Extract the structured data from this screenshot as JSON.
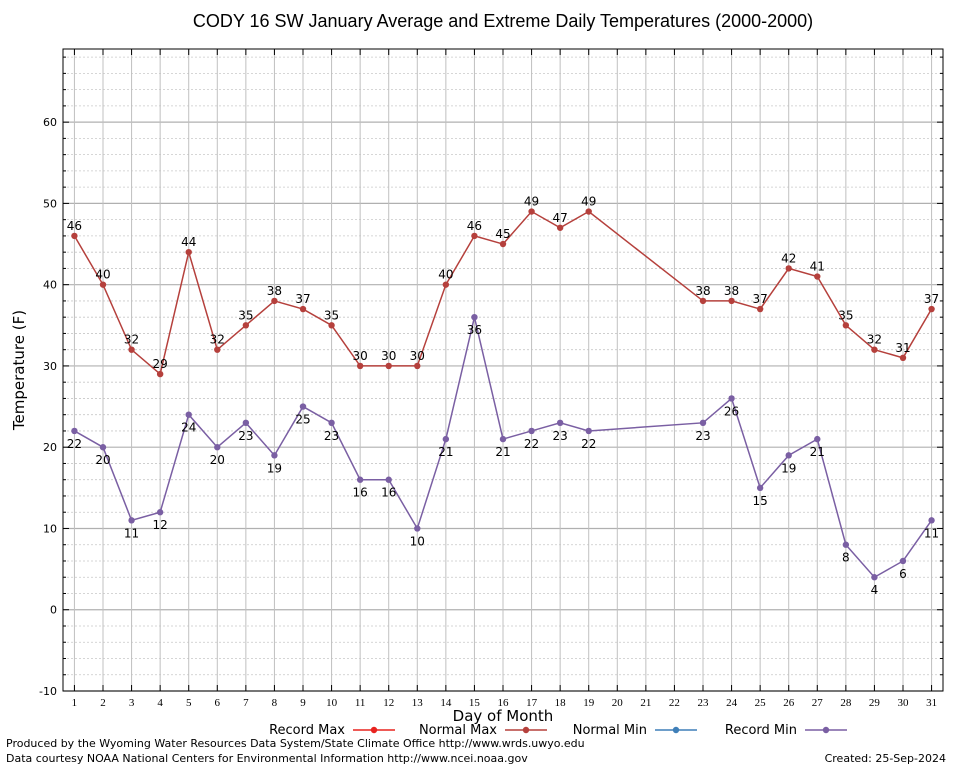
{
  "chart_data": {
    "type": "line",
    "title": "CODY 16 SW January Average and Extreme Daily Temperatures (2000-2000)",
    "xlabel": "Day of Month",
    "ylabel": "Temperature (F)",
    "x": [
      1,
      2,
      3,
      4,
      5,
      6,
      7,
      8,
      9,
      10,
      11,
      12,
      13,
      14,
      15,
      16,
      17,
      18,
      19,
      20,
      21,
      22,
      23,
      24,
      25,
      26,
      27,
      28,
      29,
      30,
      31
    ],
    "xlim": [
      0.6,
      31.4
    ],
    "ylim": [
      -10,
      69
    ],
    "yticks": [
      -10,
      0,
      10,
      20,
      30,
      40,
      50,
      60
    ],
    "grid": true,
    "legend_position": "bottom",
    "series": [
      {
        "name": "Record Max",
        "color": "#e8231f",
        "values": [
          46,
          40,
          32,
          29,
          44,
          32,
          35,
          38,
          37,
          35,
          30,
          30,
          30,
          40,
          46,
          45,
          49,
          47,
          49,
          null,
          null,
          null,
          38,
          38,
          37,
          42,
          41,
          35,
          32,
          31,
          37
        ]
      },
      {
        "name": "Normal Max",
        "color": "#b5403c",
        "values": [
          46,
          40,
          32,
          29,
          44,
          32,
          35,
          38,
          37,
          35,
          30,
          30,
          30,
          40,
          46,
          45,
          49,
          47,
          49,
          null,
          null,
          null,
          38,
          38,
          37,
          42,
          41,
          35,
          32,
          31,
          37
        ]
      },
      {
        "name": "Normal Min",
        "color": "#3f7fb8",
        "values": [
          22,
          20,
          11,
          12,
          24,
          20,
          23,
          19,
          25,
          23,
          16,
          16,
          10,
          21,
          36,
          21,
          22,
          23,
          22,
          null,
          null,
          null,
          23,
          26,
          15,
          19,
          21,
          8,
          4,
          6,
          11
        ]
      },
      {
        "name": "Record Min",
        "color": "#7a5fa3",
        "values": [
          22,
          20,
          11,
          12,
          24,
          20,
          23,
          19,
          25,
          23,
          16,
          16,
          10,
          21,
          36,
          21,
          22,
          23,
          22,
          null,
          null,
          null,
          23,
          26,
          15,
          19,
          21,
          8,
          4,
          6,
          11
        ]
      }
    ]
  },
  "footer": {
    "produced_by": "Produced by the Wyoming Water Resources Data System/State Climate Office http://www.wrds.uwyo.edu",
    "data_courtesy": "Data courtesy NOAA National Centers for Environmental Information http://www.ncei.noaa.gov",
    "created": "Created:  25-Sep-2024"
  }
}
